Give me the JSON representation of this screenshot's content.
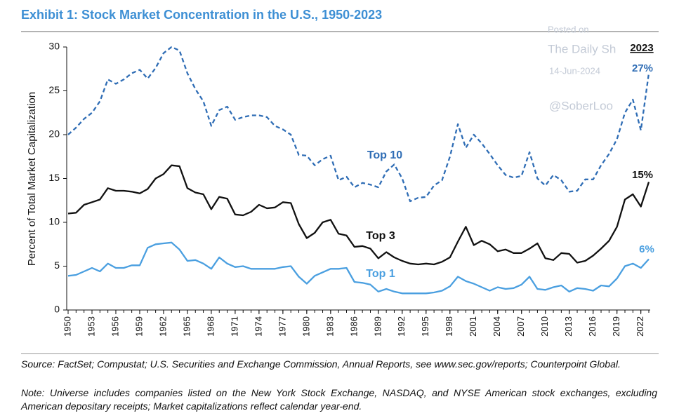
{
  "chart_data": {
    "type": "line",
    "title": "Exhibit 1: Stock Market Concentration in the U.S., 1950-2023",
    "y_label": "Percent of Total Market Capitalization",
    "x": [
      1950,
      1951,
      1952,
      1953,
      1954,
      1955,
      1956,
      1957,
      1958,
      1959,
      1960,
      1961,
      1962,
      1963,
      1964,
      1965,
      1966,
      1967,
      1968,
      1969,
      1970,
      1971,
      1972,
      1973,
      1974,
      1975,
      1976,
      1977,
      1978,
      1979,
      1980,
      1981,
      1982,
      1983,
      1984,
      1985,
      1986,
      1987,
      1988,
      1989,
      1990,
      1991,
      1992,
      1993,
      1994,
      1995,
      1996,
      1997,
      1998,
      1999,
      2000,
      2001,
      2002,
      2003,
      2004,
      2005,
      2006,
      2007,
      2008,
      2009,
      2010,
      2011,
      2012,
      2013,
      2014,
      2015,
      2016,
      2017,
      2018,
      2019,
      2020,
      2021,
      2022,
      2023
    ],
    "xlim": [
      1950,
      2023
    ],
    "xticks": [
      1950,
      1953,
      1956,
      1959,
      1962,
      1965,
      1968,
      1971,
      1974,
      1977,
      1980,
      1983,
      1986,
      1989,
      1992,
      1995,
      1998,
      2001,
      2004,
      2007,
      2010,
      2013,
      2016,
      2019,
      2022
    ],
    "ylim": [
      0,
      30
    ],
    "yticks": [
      0,
      5,
      10,
      15,
      20,
      25,
      30
    ],
    "grid": false,
    "series": [
      {
        "name": "Top 10",
        "color": "#2f6db5",
        "style": "dashed",
        "end_label": "27%",
        "values": [
          20.0,
          20.8,
          21.8,
          22.5,
          23.8,
          26.3,
          25.8,
          26.3,
          27.0,
          27.4,
          26.4,
          27.6,
          29.3,
          30.0,
          29.6,
          27.0,
          25.2,
          23.8,
          21.0,
          22.8,
          23.2,
          21.7,
          22.0,
          22.2,
          22.2,
          22.0,
          21.0,
          20.6,
          20.0,
          17.7,
          17.6,
          16.5,
          17.2,
          17.6,
          14.8,
          15.2,
          14.0,
          14.5,
          14.3,
          14.0,
          15.8,
          16.6,
          15.0,
          12.4,
          12.8,
          12.9,
          14.2,
          14.8,
          17.5,
          21.2,
          18.5,
          20.0,
          19.0,
          17.8,
          16.5,
          15.4,
          15.1,
          15.3,
          18.0,
          15.0,
          14.2,
          15.4,
          14.8,
          13.5,
          13.6,
          14.9,
          14.9,
          16.5,
          17.8,
          19.5,
          22.5,
          24.0,
          20.5,
          27.0
        ]
      },
      {
        "name": "Top 3",
        "color": "#111111",
        "style": "solid",
        "end_label": "15%",
        "values": [
          11.0,
          11.1,
          12.0,
          12.3,
          12.6,
          13.9,
          13.6,
          13.6,
          13.5,
          13.3,
          13.8,
          15.0,
          15.5,
          16.5,
          16.4,
          13.9,
          13.4,
          13.2,
          11.5,
          12.9,
          12.7,
          10.9,
          10.8,
          11.2,
          12.0,
          11.6,
          11.7,
          12.3,
          12.2,
          9.8,
          8.2,
          8.8,
          10.0,
          10.3,
          8.7,
          8.5,
          7.2,
          7.3,
          7.0,
          5.9,
          6.6,
          6.0,
          5.6,
          5.3,
          5.2,
          5.3,
          5.2,
          5.5,
          6.0,
          7.8,
          9.5,
          7.4,
          7.9,
          7.5,
          6.7,
          6.9,
          6.5,
          6.5,
          7.0,
          7.6,
          5.9,
          5.7,
          6.5,
          6.4,
          5.4,
          5.6,
          6.2,
          7.0,
          7.9,
          9.5,
          12.6,
          13.2,
          11.8,
          14.6
        ]
      },
      {
        "name": "Top 1",
        "color": "#4a9fe0",
        "style": "solid",
        "end_label": "6%",
        "values": [
          3.9,
          4.0,
          4.4,
          4.8,
          4.4,
          5.3,
          4.8,
          4.8,
          5.1,
          5.1,
          7.1,
          7.5,
          7.6,
          7.7,
          6.9,
          5.6,
          5.7,
          5.3,
          4.7,
          6.0,
          5.3,
          4.9,
          5.0,
          4.7,
          4.7,
          4.7,
          4.7,
          4.9,
          5.0,
          3.8,
          3.0,
          3.9,
          4.3,
          4.7,
          4.7,
          4.8,
          3.2,
          3.1,
          2.9,
          2.1,
          2.4,
          2.1,
          1.9,
          1.9,
          1.9,
          1.9,
          2.0,
          2.2,
          2.7,
          3.8,
          3.3,
          3.0,
          2.6,
          2.2,
          2.6,
          2.4,
          2.5,
          2.9,
          3.8,
          2.4,
          2.3,
          2.6,
          2.8,
          2.1,
          2.5,
          2.4,
          2.2,
          2.8,
          2.7,
          3.6,
          5.0,
          5.3,
          4.8,
          5.8
        ]
      }
    ],
    "end_year_label": "2023",
    "watermark": [
      "Posted on",
      "The Daily Sh",
      "14-Jun-2024",
      "@SoberLoo"
    ],
    "source": "Source: FactSet; Compustat; U.S. Securities and Exchange Commission, Annual Reports, see www.sec.gov/reports; Counterpoint Global.",
    "note": "Note: Universe includes companies listed on the New York Stock Exchange, NASDAQ, and NYSE American stock exchanges, excluding American depositary receipts; Market capitalizations reflect calendar year-end."
  }
}
